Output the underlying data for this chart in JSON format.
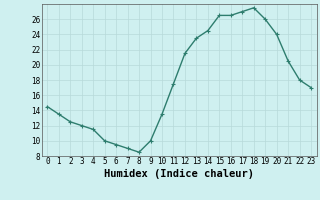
{
  "x": [
    0,
    1,
    2,
    3,
    4,
    5,
    6,
    7,
    8,
    9,
    10,
    11,
    12,
    13,
    14,
    15,
    16,
    17,
    18,
    19,
    20,
    21,
    22,
    23
  ],
  "y": [
    14.5,
    13.5,
    12.5,
    12.0,
    11.5,
    10.0,
    9.5,
    9.0,
    8.5,
    10.0,
    13.5,
    17.5,
    21.5,
    23.5,
    24.5,
    26.5,
    26.5,
    27.0,
    27.5,
    26.0,
    24.0,
    20.5,
    18.0,
    17.0
  ],
  "xlabel": "Humidex (Indice chaleur)",
  "ylim": [
    8,
    28
  ],
  "yticks": [
    8,
    10,
    12,
    14,
    16,
    18,
    20,
    22,
    24,
    26
  ],
  "xticks": [
    0,
    1,
    2,
    3,
    4,
    5,
    6,
    7,
    8,
    9,
    10,
    11,
    12,
    13,
    14,
    15,
    16,
    17,
    18,
    19,
    20,
    21,
    22,
    23
  ],
  "line_color": "#2e7d6e",
  "marker": "+",
  "bg_color": "#cff0f0",
  "grid_color": "#b8dada",
  "tick_label_fontsize": 5.5,
  "xlabel_fontsize": 7.5,
  "marker_size": 3,
  "linewidth": 1.0
}
